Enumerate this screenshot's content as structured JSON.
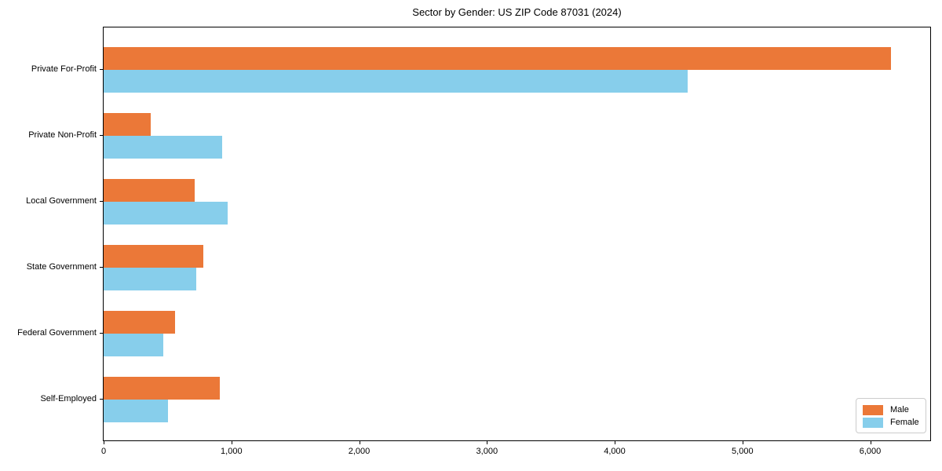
{
  "chart_data": {
    "type": "bar",
    "orientation": "horizontal",
    "title": "Sector by Gender: US ZIP Code 87031 (2024)",
    "categories": [
      "Private For-Profit",
      "Private Non-Profit",
      "Local Government",
      "State Government",
      "Federal Government",
      "Self-Employed"
    ],
    "series": [
      {
        "name": "Male",
        "color": "#EB7838",
        "values": [
          6160,
          370,
          710,
          780,
          560,
          910
        ]
      },
      {
        "name": "Female",
        "color": "#87CEEB",
        "values": [
          4570,
          930,
          970,
          725,
          465,
          505
        ]
      }
    ],
    "xlabel": "",
    "ylabel": "",
    "xlim": [
      0,
      6470
    ],
    "xticks": [
      0,
      1000,
      2000,
      3000,
      4000,
      5000,
      6000
    ],
    "xtick_labels": [
      "0",
      "1,000",
      "2,000",
      "3,000",
      "4,000",
      "5,000",
      "6,000"
    ],
    "grid": false,
    "legend": {
      "position": "lower-right",
      "entries": [
        "Male",
        "Female"
      ]
    }
  },
  "colors": {
    "axis": "#000000",
    "legend_border": "#cccccc",
    "background": "#ffffff",
    "text": "#000000"
  }
}
